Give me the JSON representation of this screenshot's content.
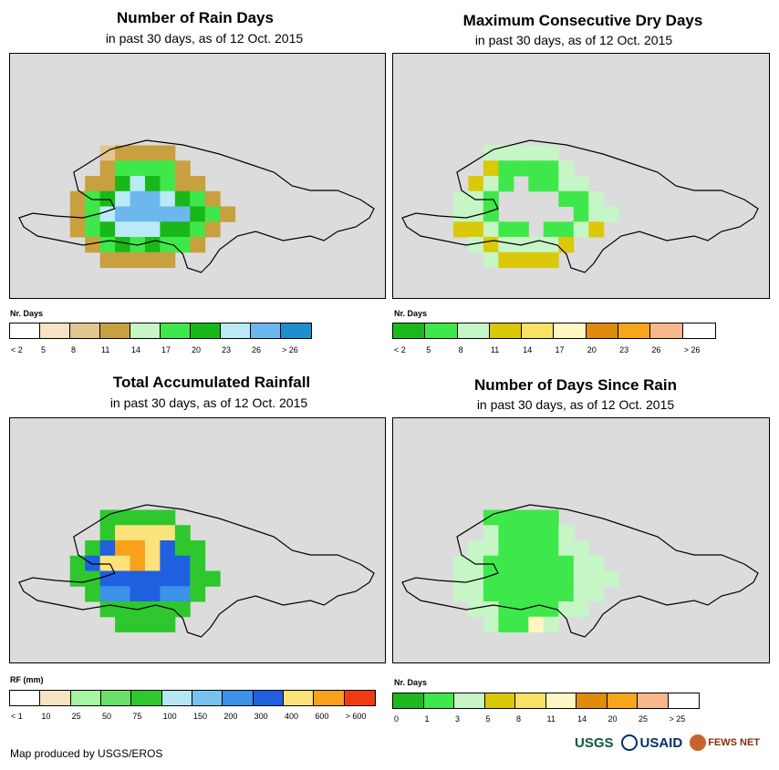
{
  "panels": [
    {
      "title": "Number of Rain Days",
      "subtitle": "in past 30 days, as of 12 Oct. 2015",
      "legend_title": "Nr. Days",
      "legend_colors": [
        "#ffffff",
        "#f6e3c4",
        "#e2c58f",
        "#c8a040",
        "#c6f5c6",
        "#3fe84a",
        "#18b818",
        "#b9eaf6",
        "#6cb8ee",
        "#1e8fce"
      ],
      "legend_labels": [
        "< 2",
        "5",
        "8",
        "11",
        "14",
        "17",
        "20",
        "23",
        "26",
        "> 26"
      ],
      "grid": [
        "0000000000000000000000000",
        "0000000000000000000000000",
        "0000000000000000000000000",
        "0000000000000000000000000",
        "0000000000000000000000000",
        "0000000000000000000000000",
        "0000002333300000000000000",
        "0000003555530000000000000",
        "0000033676533000000000000",
        "0000356788765300000000000",
        "0000357888886530000000000",
        "0000356777665300000000000",
        "0000035656553000000000000",
        "0000003333300000000000000",
        "0000000000000000000000000",
        "0000000000000000000000000"
      ]
    },
    {
      "title": "Maximum Consecutive Dry Days",
      "subtitle": "in past 30 days, as of 12 Oct. 2015",
      "legend_title": "Nr. Days",
      "legend_colors": [
        "#1db81d",
        "#3fe84a",
        "#c6f5c6",
        "#dcc80a",
        "#fae266",
        "#fff7c2",
        "#e08a0e",
        "#f7a51b",
        "#f7b98c",
        "#ffffff"
      ],
      "legend_labels": [
        "< 2",
        "5",
        "8",
        "11",
        "14",
        "17",
        "20",
        "23",
        "26",
        "> 26"
      ],
      "grid": [
        "0000000000000000000000000",
        "0000000000000000000000000",
        "0000000000000000000000000",
        "0000000000000000000000000",
        "0000000000000000000000000",
        "0000000000000000000000000",
        "0000002222200000000000000",
        "0000003111120000000000000",
        "0000032101122000000000000",
        "0000221000011200000000000",
        "0000221000001220000000000",
        "0000332110112300000000000",
        "0000023222230000000000000",
        "0000002333300000000000000",
        "0000000000000000000000000",
        "0000000000000000000000000"
      ]
    },
    {
      "title": "Total Accumulated Rainfall",
      "subtitle": "in past 30 days, as of 12 Oct. 2015",
      "legend_title": "RF (mm)",
      "legend_colors": [
        "#ffffff",
        "#f6e3c4",
        "#a6f5a0",
        "#6ae06a",
        "#2ec82e",
        "#b5e6f5",
        "#79c1ef",
        "#3b92e8",
        "#1f5fe0",
        "#fbe27a",
        "#f9a11b",
        "#f23a10"
      ],
      "legend_labels": [
        "< 1",
        "10",
        "25",
        "50",
        "75",
        "100",
        "150",
        "200",
        "300",
        "400",
        "600",
        "> 600"
      ],
      "grid": [
        "0000000000000000000000000",
        "0000000000000000000000000",
        "0000000000000000000000000",
        "0000000000000000000000000",
        "0000000000000000000000000",
        "0000000000000000000000000",
        "0000004444400000000000000",
        "0000004999940000000000000",
        "0000048aa9844000000000000",
        "00004899a9884000000000000",
        "0000448888884400000000000",
        "0000047788774000000000000",
        "0000004444440000000000000",
        "0000000444400000000000000",
        "0000000000000000000000000",
        "0000000000000000000000000"
      ]
    },
    {
      "title": "Number of Days Since Rain",
      "subtitle": "in past 30 days, as of 12 Oct. 2015",
      "legend_title": "Nr. Days",
      "legend_colors": [
        "#1db81d",
        "#3fe84a",
        "#c6f5c6",
        "#dcc80a",
        "#fae266",
        "#fff7c2",
        "#e08a0e",
        "#f7a51b",
        "#f7b98c",
        "#ffffff"
      ],
      "legend_labels": [
        "0",
        "1",
        "3",
        "5",
        "8",
        "11",
        "14",
        "20",
        "25",
        "> 25"
      ],
      "grid": [
        "0000000000000000000000000",
        "0000000000000000000000000",
        "0000000000000000000000000",
        "0000000000000000000000000",
        "0000000000000000000000000",
        "0000000000000000000000000",
        "0000001111100000000000000",
        "0000002111120000000000000",
        "0000022111122000000000000",
        "0000221111112200000000000",
        "0000221111112220000000000",
        "0000221111112200000000000",
        "0000022111122000000000000",
        "0000002115200000000000000",
        "0000000000000000000000000",
        "0000000000000000000000000"
      ]
    }
  ],
  "footer": {
    "credit": "Map produced by USGS/EROS",
    "logos": [
      "USGS",
      "USAID",
      "FEWS NET"
    ]
  }
}
